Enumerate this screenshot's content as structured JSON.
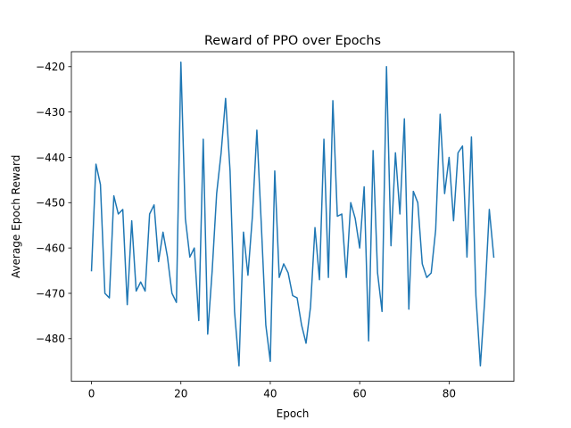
{
  "chart_data": {
    "type": "line",
    "title": "Reward of PPO over Epochs",
    "xlabel": "Epoch",
    "ylabel": "Average Epoch Reward",
    "xlim": [
      -4.5,
      94.5
    ],
    "ylim": [
      -489.4,
      -416.7
    ],
    "xticks": [
      0,
      20,
      40,
      60,
      80
    ],
    "yticks": [
      -480,
      -470,
      -460,
      -450,
      -440,
      -430,
      -420
    ],
    "grid": false,
    "legend": "none",
    "line_color": "#1f77b4",
    "series": [
      {
        "x": [
          0,
          1,
          2,
          3,
          4,
          5,
          6,
          7,
          8,
          9,
          10,
          11,
          12,
          13,
          14,
          15,
          16,
          17,
          18,
          19,
          20,
          21,
          22,
          23,
          24,
          25,
          26,
          27,
          28,
          29,
          30,
          31,
          32,
          33,
          34,
          35,
          36,
          37,
          38,
          39,
          40,
          41,
          42,
          43,
          44,
          45,
          46,
          47,
          48,
          49,
          50,
          51,
          52,
          53,
          54,
          55,
          56,
          57,
          58,
          59,
          60,
          61,
          62,
          63,
          64,
          65,
          66,
          67,
          68,
          69,
          70,
          71,
          72,
          73,
          74,
          75,
          76,
          77,
          78,
          79,
          80,
          81,
          82,
          83,
          84,
          85,
          86,
          87,
          88,
          89,
          90
        ],
        "values": [
          -465,
          -441.5,
          -446,
          -470,
          -471,
          -448.5,
          -452.5,
          -451.5,
          -472.5,
          -454,
          -469.5,
          -467.5,
          -469.5,
          -452.5,
          -450.5,
          -463,
          -456.5,
          -462,
          -470,
          -472,
          -419,
          -453.5,
          -462,
          -460,
          -476,
          -436,
          -479,
          -465,
          -448,
          -439,
          -427,
          -443,
          -474,
          -486,
          -456.5,
          -466,
          -453,
          -434,
          -455,
          -477,
          -485,
          -443,
          -466.5,
          -463.5,
          -465.5,
          -470.5,
          -471,
          -477,
          -481,
          -473,
          -455.5,
          -467,
          -436,
          -466.5,
          -427.5,
          -453,
          -452.5,
          -466.5,
          -450,
          -453.5,
          -460,
          -446.5,
          -480.5,
          -438.5,
          -465.5,
          -474,
          -420,
          -459.5,
          -439,
          -452.5,
          -431.5,
          -473.5,
          -447.5,
          -450,
          -463.5,
          -466.5,
          -465.5,
          -456,
          -430.5,
          -448,
          -440,
          -454,
          -439,
          -437.5,
          -462,
          -435.5,
          -470.5,
          -486,
          -471,
          -451.5,
          -462
        ]
      }
    ]
  }
}
